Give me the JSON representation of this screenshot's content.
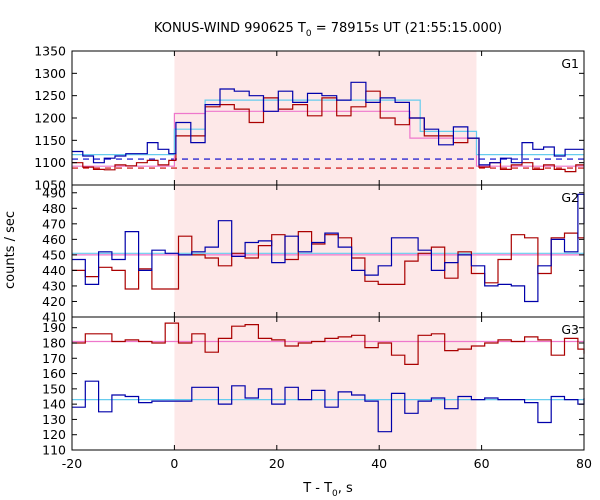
{
  "chart_data": {
    "type": "line",
    "title": {
      "prefix": "KONUS-WIND 990625 T",
      "sub": "0",
      "suffix": " = 78915s UT (21:55:15.000)"
    },
    "xlabel": {
      "prefix": "T - T",
      "sub": "0",
      "suffix": ", s"
    },
    "ylabel": "counts / sec",
    "xlim": [
      -20,
      80
    ],
    "x_ticks": [
      -20,
      0,
      20,
      40,
      60,
      80
    ],
    "shaded_interval": [
      0,
      59
    ],
    "colors": {
      "series_a": "#0000aa",
      "series_b": "#aa0000",
      "fit_a": "#66ccee",
      "fit_b": "#ee77cc",
      "background_a": "#0000cc",
      "background_b": "#cc0000",
      "shade": "#fde8e8"
    },
    "panels": [
      {
        "label": "G1",
        "ylim": [
          1050,
          1350
        ],
        "y_ticks": [
          1050,
          1100,
          1150,
          1200,
          1250,
          1300,
          1350
        ],
        "series": [
          {
            "color_key": "series_b",
            "x": [
              -20,
              -17.9,
              -15.8,
              -13.7,
              -11.6,
              -9.5,
              -7.4,
              -5.3,
              -3.2,
              -1.1,
              0.3,
              3.2,
              6.0,
              8.9,
              11.7,
              14.6,
              17.4,
              20.3,
              23.1,
              26.0,
              28.8,
              31.7,
              34.5,
              37.4,
              40.2,
              43.1,
              45.9,
              48.8,
              51.6,
              54.5,
              57.3,
              59.5,
              61.6,
              63.7,
              65.8,
              67.9,
              70.0,
              72.1,
              74.2,
              76.3,
              78.4,
              80
            ],
            "values": [
              1100,
              1090,
              1085,
              1084,
              1095,
              1093,
              1100,
              1105,
              1095,
              1105,
              1160,
              1160,
              1225,
              1230,
              1220,
              1190,
              1245,
              1220,
              1230,
              1205,
              1245,
              1205,
              1225,
              1260,
              1200,
              1185,
              1200,
              1160,
              1160,
              1145,
              1155,
              1090,
              1100,
              1085,
              1095,
              1100,
              1085,
              1095,
              1085,
              1080,
              1095,
              1095
            ]
          },
          {
            "color_key": "series_a",
            "x": [
              -20,
              -17.9,
              -15.8,
              -13.7,
              -11.6,
              -9.5,
              -7.4,
              -5.3,
              -3.2,
              -1.1,
              0.3,
              3.2,
              6.0,
              8.9,
              11.7,
              14.6,
              17.4,
              20.3,
              23.1,
              26.0,
              28.8,
              31.7,
              34.5,
              37.4,
              40.2,
              43.1,
              45.9,
              48.8,
              51.6,
              54.5,
              57.3,
              59.5,
              61.6,
              63.7,
              65.8,
              67.9,
              70.0,
              72.1,
              74.2,
              76.3,
              78.4,
              80
            ],
            "values": [
              1125,
              1115,
              1100,
              1110,
              1115,
              1120,
              1120,
              1145,
              1130,
              1120,
              1190,
              1145,
              1230,
              1265,
              1260,
              1250,
              1215,
              1260,
              1235,
              1255,
              1250,
              1240,
              1280,
              1235,
              1245,
              1235,
              1200,
              1175,
              1140,
              1180,
              1155,
              1095,
              1100,
              1110,
              1100,
              1145,
              1130,
              1135,
              1115,
              1130,
              1130,
              1130
            ]
          }
        ],
        "fits": [
          {
            "color_key": "fit_b",
            "x": [
              -20,
              0,
              0,
              6,
              6,
              46,
              46,
              59,
              59,
              80
            ],
            "values": [
              1092,
              1092,
              1210,
              1210,
              1215,
              1215,
              1155,
              1155,
              1092,
              1092
            ]
          },
          {
            "color_key": "fit_a",
            "x": [
              -20,
              0,
              0,
              6,
              6,
              48,
              48,
              59,
              59,
              80
            ],
            "values": [
              1118,
              1118,
              1175,
              1175,
              1240,
              1240,
              1170,
              1170,
              1118,
              1118
            ]
          }
        ],
        "backgrounds": [
          {
            "color_key": "background_a",
            "value": 1108
          },
          {
            "color_key": "background_b",
            "value": 1088
          }
        ]
      },
      {
        "label": "G2",
        "ylim": [
          410,
          495
        ],
        "y_ticks": [
          410,
          420,
          430,
          440,
          450,
          460,
          470,
          480,
          490
        ],
        "series": [
          {
            "color_key": "series_b",
            "x": [
              -20,
              -17.4,
              -14.8,
              -12.2,
              -9.6,
              -7.0,
              -4.4,
              -1.8,
              0.8,
              3.4,
              6.0,
              8.6,
              11.2,
              13.8,
              16.4,
              19.0,
              21.6,
              24.2,
              26.8,
              29.4,
              32.0,
              34.6,
              37.2,
              39.8,
              42.4,
              45.0,
              47.6,
              50.2,
              52.8,
              55.4,
              58.0,
              60.6,
              63.2,
              65.8,
              68.4,
              71.0,
              73.6,
              76.2,
              78.8,
              80
            ],
            "values": [
              440,
              436,
              442,
              440,
              428,
              441,
              428,
              428,
              462,
              450,
              448,
              443,
              451,
              448,
              456,
              463,
              447,
              465,
              457,
              463,
              461,
              448,
              433,
              431,
              431,
              446,
              451,
              455,
              435,
              452,
              438,
              432,
              447,
              463,
              461,
              438,
              461,
              464,
              461,
              461
            ]
          },
          {
            "color_key": "series_a",
            "x": [
              -20,
              -17.4,
              -14.8,
              -12.2,
              -9.6,
              -7.0,
              -4.4,
              -1.8,
              0.8,
              3.4,
              6.0,
              8.6,
              11.2,
              13.8,
              16.4,
              19.0,
              21.6,
              24.2,
              26.8,
              29.4,
              32.0,
              34.6,
              37.2,
              39.8,
              42.4,
              45.0,
              47.6,
              50.2,
              52.8,
              55.4,
              58.0,
              60.6,
              63.2,
              65.8,
              68.4,
              71.0,
              73.6,
              76.2,
              78.8,
              80
            ],
            "values": [
              447,
              431,
              452,
              447,
              465,
              440,
              453,
              451,
              450,
              452,
              455,
              472,
              449,
              458,
              459,
              445,
              462,
              452,
              458,
              464,
              455,
              440,
              437,
              443,
              461,
              461,
              453,
              440,
              445,
              450,
              443,
              430,
              431,
              430,
              420,
              443,
              460,
              452,
              489,
              470
            ]
          }
        ],
        "fits": [
          {
            "color_key": "fit_a",
            "x": [
              -20,
              80
            ],
            "values": [
              451,
              451
            ]
          },
          {
            "color_key": "fit_b",
            "x": [
              -20,
              80
            ],
            "values": [
              450,
              450
            ]
          }
        ],
        "backgrounds": []
      },
      {
        "label": "G3",
        "ylim": [
          110,
          197
        ],
        "y_ticks": [
          110,
          120,
          130,
          140,
          150,
          160,
          170,
          180,
          190
        ],
        "series": [
          {
            "color_key": "series_b",
            "x": [
              -20,
              -17.4,
              -14.8,
              -12.2,
              -9.6,
              -7.0,
              -4.4,
              -1.8,
              0.8,
              3.4,
              6.0,
              8.6,
              11.2,
              13.8,
              16.4,
              19.0,
              21.6,
              24.2,
              26.8,
              29.4,
              32.0,
              34.6,
              37.2,
              39.8,
              42.4,
              45.0,
              47.6,
              50.2,
              52.8,
              55.4,
              58.0,
              60.6,
              63.2,
              65.8,
              68.4,
              71.0,
              73.6,
              76.2,
              78.8,
              80
            ],
            "values": [
              180,
              186,
              186,
              181,
              182,
              181,
              180,
              193,
              180,
              186,
              174,
              183,
              191,
              192,
              183,
              182,
              178,
              180,
              181,
              183,
              184,
              185,
              177,
              180,
              172,
              166,
              185,
              186,
              175,
              176,
              178,
              180,
              182,
              181,
              184,
              182,
              172,
              183,
              176,
              173
            ]
          },
          {
            "color_key": "series_a",
            "x": [
              -20,
              -17.4,
              -14.8,
              -12.2,
              -9.6,
              -7.0,
              -4.4,
              -1.8,
              0.8,
              3.4,
              6.0,
              8.6,
              11.2,
              13.8,
              16.4,
              19.0,
              21.6,
              24.2,
              26.8,
              29.4,
              32.0,
              34.6,
              37.2,
              39.8,
              42.4,
              45.0,
              47.6,
              50.2,
              52.8,
              55.4,
              58.0,
              60.6,
              63.2,
              65.8,
              68.4,
              71.0,
              73.6,
              76.2,
              78.8,
              80
            ],
            "values": [
              138,
              155,
              135,
              146,
              145,
              141,
              142,
              142,
              142,
              151,
              151,
              140,
              152,
              144,
              150,
              140,
              151,
              143,
              149,
              138,
              148,
              146,
              142,
              122,
              147,
              134,
              142,
              144,
              137,
              145,
              143,
              144,
              143,
              143,
              141,
              128,
              145,
              143,
              140,
              144
            ]
          }
        ],
        "fits": [
          {
            "color_key": "fit_b",
            "x": [
              -20,
              80
            ],
            "values": [
              181,
              181
            ]
          },
          {
            "color_key": "fit_a",
            "x": [
              -20,
              80
            ],
            "values": [
              143,
              143
            ]
          }
        ],
        "backgrounds": []
      }
    ]
  }
}
